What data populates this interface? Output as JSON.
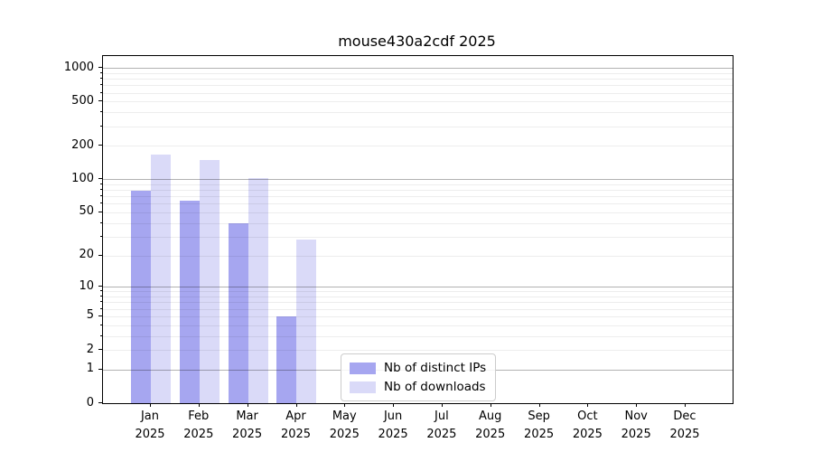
{
  "chart_data": {
    "type": "bar",
    "title": "mouse430a2cdf 2025",
    "categories": [
      "Jan",
      "Feb",
      "Mar",
      "Apr",
      "May",
      "Jun",
      "Jul",
      "Aug",
      "Sep",
      "Oct",
      "Nov",
      "Dec"
    ],
    "year": "2025",
    "series": [
      {
        "name": "Nb of distinct IPs",
        "color": "#a6a6f0",
        "values": [
          79,
          64,
          40,
          5,
          0,
          0,
          0,
          0,
          0,
          0,
          0,
          0
        ]
      },
      {
        "name": "Nb of downloads",
        "color": "#dadaf8",
        "values": [
          166,
          149,
          103,
          28,
          0,
          0,
          0,
          0,
          0,
          0,
          0,
          0
        ]
      }
    ],
    "y_ticks": [
      0,
      1,
      2,
      5,
      10,
      20,
      50,
      100,
      200,
      500,
      1000
    ],
    "y_scale": "log1p",
    "ylim": [
      0,
      1276
    ],
    "grid": {
      "major_lines": [
        1,
        10,
        100,
        1000
      ],
      "minor_lines": [
        2,
        3,
        4,
        5,
        6,
        7,
        8,
        9,
        20,
        30,
        40,
        50,
        60,
        70,
        80,
        90,
        200,
        300,
        400,
        500,
        600,
        700,
        800,
        900
      ]
    },
    "legend_position": "lower-center-inside",
    "colors": {
      "background": "#ffffff",
      "spine": "#000000",
      "grid_major": "rgba(0,0,0,0.30)",
      "grid_minor": "rgba(0,0,0,0.07)",
      "text": "#000000",
      "legend_border": "#cccccc"
    }
  }
}
